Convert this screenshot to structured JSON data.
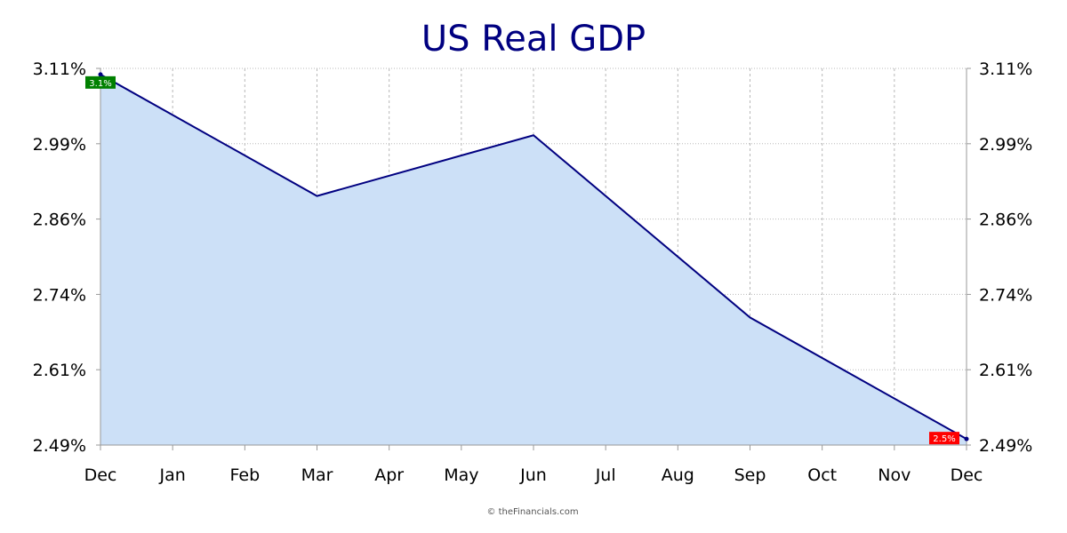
{
  "colors": {
    "title": "#000080",
    "line": "#000080",
    "area": "#cce0f7",
    "grid": "#b8b8b8",
    "axis": "#999999",
    "start_flag": "#008000",
    "end_flag": "#ff0000"
  },
  "chart_data": {
    "type": "area",
    "title": "US Real GDP",
    "xlabel": "",
    "ylabel": "",
    "x_ticks": [
      "Dec",
      "Jan",
      "Feb",
      "Mar",
      "Apr",
      "May",
      "Jun",
      "Jul",
      "Aug",
      "Sep",
      "Oct",
      "Nov",
      "Dec"
    ],
    "y_ticks": [
      "3.11%",
      "2.99%",
      "2.86%",
      "2.74%",
      "2.61%",
      "2.49%"
    ],
    "ylim": [
      2.49,
      3.11
    ],
    "grid": true,
    "series": [
      {
        "x": [
          "Dec",
          "Mar",
          "Jun",
          "Sep",
          "Dec"
        ],
        "y": [
          3.1,
          2.9,
          3.0,
          2.7,
          2.5
        ]
      }
    ],
    "annotations": {
      "start_label": "3.1%",
      "end_label": "2.5%"
    }
  },
  "footer": {
    "credit": "© theFinancials.com"
  }
}
